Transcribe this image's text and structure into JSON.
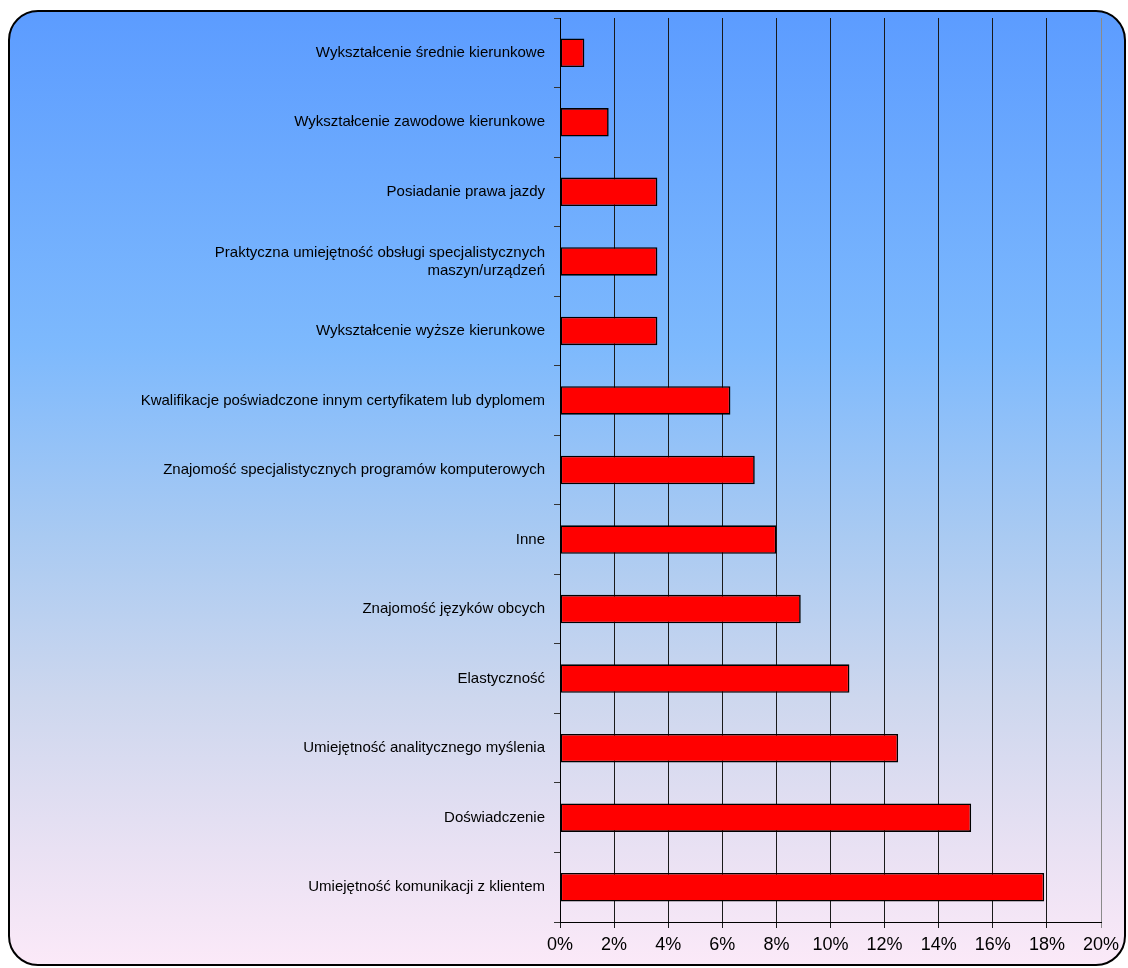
{
  "chart_data": {
    "type": "bar",
    "orientation": "horizontal",
    "categories": [
      "Wykształcenie średnie kierunkowe",
      "Wykształcenie zawodowe kierunkowe",
      "Posiadanie prawa jazdy",
      "Praktyczna umiejętność obsługi specjalistycznych maszyn/urządzeń",
      "Wykształcenie wyższe kierunkowe",
      "Kwalifikacje poświadczone innym certyfikatem lub dyplomem",
      "Znajomość specjalistycznych programów komputerowych",
      "Inne",
      "Znajomość języków obcych",
      "Elastyczność",
      "Umiejętność analitycznego myślenia",
      "Doświadczenie",
      "Umiejętność komunikacji z klientem"
    ],
    "values": [
      0.9,
      1.8,
      3.6,
      3.6,
      3.6,
      6.3,
      7.2,
      8.0,
      8.9,
      10.7,
      12.5,
      15.2,
      17.9
    ],
    "color": "#ff0000",
    "xlim": [
      0,
      20
    ],
    "xticks": [
      {
        "value": 0,
        "label": "0%"
      },
      {
        "value": 2,
        "label": "2%"
      },
      {
        "value": 4,
        "label": "4%"
      },
      {
        "value": 6,
        "label": "6%"
      },
      {
        "value": 8,
        "label": "8%"
      },
      {
        "value": 10,
        "label": "10%"
      },
      {
        "value": 12,
        "label": "12%"
      },
      {
        "value": 14,
        "label": "14%"
      },
      {
        "value": 16,
        "label": "16%"
      },
      {
        "value": 18,
        "label": "18%"
      },
      {
        "value": 20,
        "label": "20%"
      }
    ],
    "grid": "x",
    "legend": false
  }
}
